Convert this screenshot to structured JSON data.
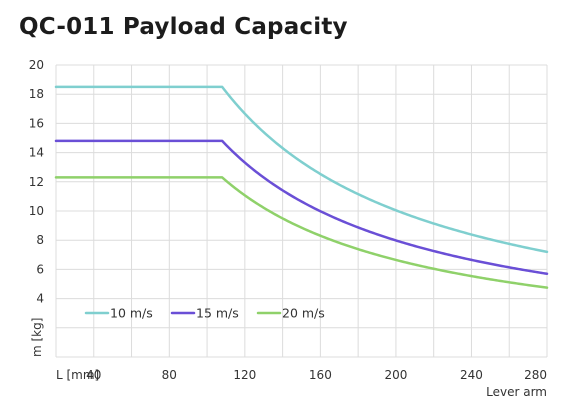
{
  "chart_data": {
    "type": "line",
    "title": "QC-011 Payload Capacity",
    "xlabel_prefix": "L [mm]",
    "xlabel": "Lever arm",
    "ylabel": "m [kg]",
    "xlim": [
      20,
      280
    ],
    "ylim": [
      0,
      20
    ],
    "xticks": [
      40,
      80,
      120,
      160,
      200,
      240,
      280
    ],
    "yticks": [
      4,
      6,
      8,
      10,
      12,
      14,
      16,
      18,
      20
    ],
    "grid": true,
    "legend_position": "bottom-left",
    "series": [
      {
        "name": "10 m/s",
        "color": "#7fcfcf",
        "plateau": 18.5,
        "knee_x": 108,
        "end_value": 7.2
      },
      {
        "name": "15 m/s",
        "color": "#6a4fd6",
        "plateau": 14.8,
        "knee_x": 108,
        "end_value": 5.7
      },
      {
        "name": "20 m/s",
        "color": "#8fd16a",
        "plateau": 12.3,
        "knee_x": 108,
        "end_value": 4.75
      }
    ]
  }
}
